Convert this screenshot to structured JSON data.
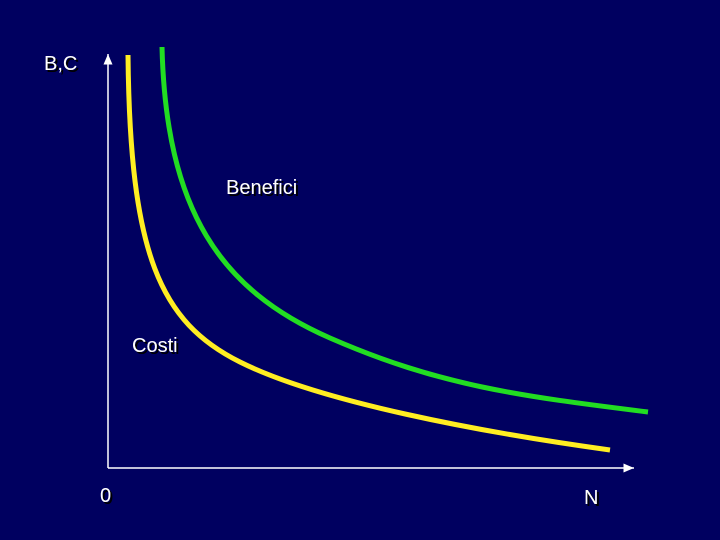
{
  "axes": {
    "y_label": "B,C",
    "x_label": "N",
    "origin": "0"
  },
  "curves": [
    {
      "label": "Benefici"
    },
    {
      "label": "Costi"
    }
  ]
}
